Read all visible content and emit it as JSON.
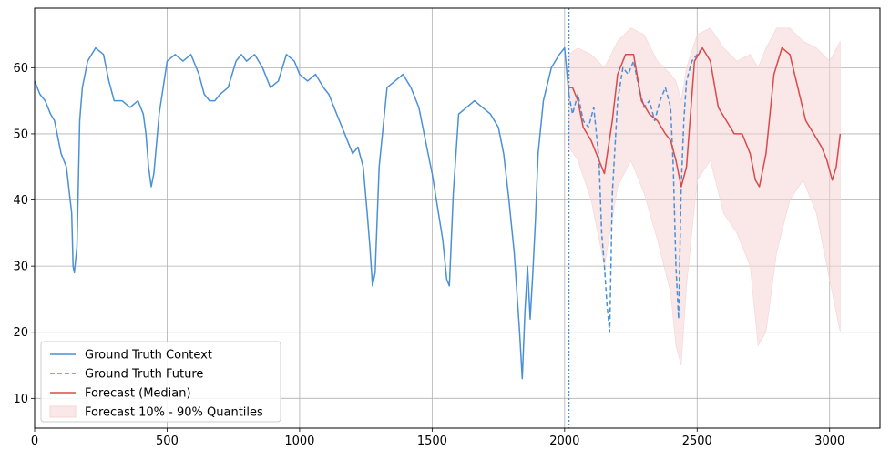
{
  "chart_data": {
    "type": "line",
    "title": "",
    "xlabel": "",
    "ylabel": "",
    "xlim": [
      0,
      3190
    ],
    "ylim": [
      5.5,
      69
    ],
    "xticks": [
      0,
      500,
      1000,
      1500,
      2000,
      2500,
      3000
    ],
    "yticks": [
      10,
      20,
      30,
      40,
      50,
      60
    ],
    "grid": true,
    "legend_position": "lower-left",
    "forecast_start": 2016,
    "colors": {
      "context": "#4a90d9",
      "future": "#4a90d9",
      "median": "#d94a4a",
      "band": "#f6d4d4"
    },
    "series": [
      {
        "name": "Ground Truth Context",
        "style": "solid",
        "x": [
          0,
          20,
          40,
          60,
          75,
          100,
          120,
          140,
          145,
          150,
          160,
          170,
          180,
          200,
          230,
          260,
          280,
          300,
          330,
          360,
          390,
          410,
          420,
          430,
          440,
          450,
          470,
          500,
          530,
          560,
          590,
          620,
          640,
          660,
          680,
          700,
          730,
          760,
          780,
          800,
          830,
          860,
          890,
          920,
          950,
          980,
          1000,
          1030,
          1060,
          1090,
          1110,
          1140,
          1170,
          1200,
          1220,
          1240,
          1255,
          1265,
          1275,
          1285,
          1300,
          1330,
          1360,
          1390,
          1420,
          1450,
          1480,
          1500,
          1520,
          1540,
          1555,
          1565,
          1580,
          1600,
          1630,
          1660,
          1690,
          1720,
          1750,
          1770,
          1790,
          1810,
          1830,
          1840,
          1850,
          1860,
          1870,
          1880,
          1890,
          1900,
          1920,
          1950,
          1980,
          2000,
          2016
        ],
        "y": [
          58,
          56,
          55,
          53,
          52,
          47,
          45,
          38,
          30,
          29,
          33,
          52,
          57,
          61,
          63,
          62,
          58,
          55,
          55,
          54,
          55,
          53,
          50,
          45,
          42,
          44,
          53,
          61,
          62,
          61,
          62,
          59,
          56,
          55,
          55,
          56,
          57,
          61,
          62,
          61,
          62,
          60,
          57,
          58,
          62,
          61,
          59,
          58,
          59,
          57,
          56,
          53,
          50,
          47,
          48,
          45,
          38,
          33,
          27,
          29,
          45,
          57,
          58,
          59,
          57,
          54,
          48,
          44,
          39,
          34,
          28,
          27,
          41,
          53,
          54,
          55,
          54,
          53,
          51,
          47,
          40,
          32,
          20,
          13,
          23,
          30,
          22,
          29,
          37,
          47,
          55,
          60,
          62,
          63,
          56
        ]
      },
      {
        "name": "Ground Truth Future",
        "style": "dashed",
        "x": [
          2016,
          2030,
          2050,
          2070,
          2090,
          2110,
          2130,
          2140,
          2150,
          2160,
          2170,
          2180,
          2200,
          2220,
          2240,
          2260,
          2280,
          2300,
          2320,
          2340,
          2360,
          2380,
          2400,
          2410,
          2420,
          2430,
          2440,
          2450,
          2460,
          2480,
          2500,
          2520
        ],
        "y": [
          56,
          53,
          56,
          52,
          51,
          54,
          46,
          35,
          30,
          24,
          20,
          41,
          55,
          60,
          59,
          61,
          57,
          54,
          55,
          52,
          55,
          57,
          54,
          45,
          30,
          22,
          42,
          52,
          58,
          61,
          62,
          63
        ]
      },
      {
        "name": "Forecast (Median)",
        "style": "solid",
        "x": [
          2016,
          2030,
          2050,
          2070,
          2100,
          2130,
          2150,
          2165,
          2180,
          2200,
          2230,
          2260,
          2290,
          2320,
          2350,
          2380,
          2400,
          2420,
          2440,
          2460,
          2490,
          2520,
          2550,
          2580,
          2610,
          2640,
          2670,
          2700,
          2720,
          2735,
          2760,
          2790,
          2820,
          2850,
          2880,
          2910,
          2940,
          2970,
          2990,
          3010,
          3025,
          3040
        ],
        "y": [
          57,
          57,
          55,
          51,
          49,
          46,
          44,
          48,
          52,
          59,
          62,
          62,
          55,
          53,
          52,
          50,
          49,
          46,
          42,
          45,
          61,
          63,
          61,
          54,
          52,
          50,
          50,
          47,
          43,
          42,
          47,
          59,
          63,
          62,
          57,
          52,
          50,
          48,
          46,
          43,
          45,
          50
        ]
      }
    ],
    "band": {
      "name": "Forecast 10% - 90% Quantiles",
      "x": [
        2016,
        2050,
        2100,
        2150,
        2200,
        2250,
        2300,
        2350,
        2400,
        2420,
        2440,
        2460,
        2500,
        2550,
        2600,
        2650,
        2700,
        2730,
        2760,
        2800,
        2850,
        2900,
        2950,
        3000,
        3040
      ],
      "upper": [
        62,
        63,
        62,
        60,
        64,
        66,
        65,
        61,
        59,
        58,
        55,
        60,
        65,
        66,
        63,
        61,
        62,
        60,
        63,
        66,
        66,
        64,
        63,
        61,
        64
      ],
      "lower": [
        48,
        46,
        40,
        30,
        42,
        46,
        41,
        34,
        26,
        18,
        15,
        27,
        43,
        46,
        38,
        35,
        30,
        18,
        20,
        32,
        40,
        43,
        38,
        28,
        20
      ]
    }
  }
}
